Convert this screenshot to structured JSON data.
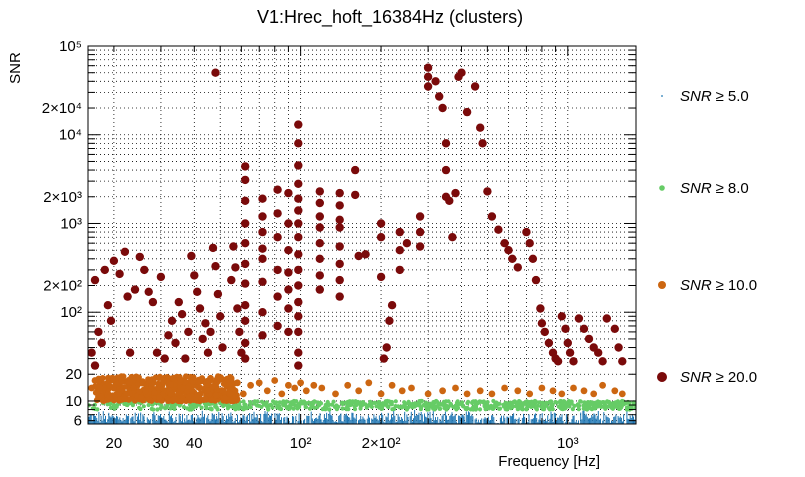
{
  "chart_data": {
    "type": "scatter",
    "title": "V1:Hrec_hoft_16384Hz (clusters)",
    "xlabel": "Frequency [Hz]",
    "ylabel": "SNR",
    "x_scale": "log",
    "y_scale": "log",
    "xlim": [
      16,
      1800
    ],
    "ylim": [
      5.5,
      100000
    ],
    "grid": true,
    "legend_position": "right",
    "x_ticks": [
      {
        "value": 20,
        "label": "20"
      },
      {
        "value": 30,
        "label": "30"
      },
      {
        "value": 40,
        "label": "40"
      },
      {
        "value": 100,
        "label": "10²"
      },
      {
        "value": 200,
        "label": "2×10²"
      },
      {
        "value": 1000,
        "label": "10³"
      }
    ],
    "y_ticks": [
      {
        "value": 6,
        "label": "6"
      },
      {
        "value": 10,
        "label": "10"
      },
      {
        "value": 20,
        "label": "20"
      },
      {
        "value": 100,
        "label": "10²"
      },
      {
        "value": 200,
        "label": "2×10²"
      },
      {
        "value": 1000,
        "label": "10³"
      },
      {
        "value": 2000,
        "label": "2×10³"
      },
      {
        "value": 10000,
        "label": "10⁴"
      },
      {
        "value": 20000,
        "label": "2×10⁴"
      },
      {
        "value": 100000,
        "label": "10⁵"
      }
    ],
    "series": [
      {
        "name": "SNR ≥ 5.0",
        "label_var": "SNR",
        "label_op": "≥",
        "label_num": "5.0",
        "color": "#1f77b4",
        "marker": "bar",
        "x_range": [
          16,
          1800
        ],
        "y_range": [
          5.5,
          8.0
        ]
      },
      {
        "name": "SNR ≥ 8.0",
        "label_var": "SNR",
        "label_op": "≥",
        "label_num": "8.0",
        "color": "#66cc66",
        "marker": "point",
        "x_range": [
          16,
          1800
        ],
        "y_range": [
          8.0,
          10.0
        ]
      },
      {
        "name": "SNR ≥ 10.0",
        "label_var": "SNR",
        "label_op": "≥",
        "label_num": "10.0",
        "color": "#cc6611",
        "points": [
          [
            16.5,
            14
          ],
          [
            17,
            17
          ],
          [
            17.5,
            12
          ],
          [
            18,
            15
          ],
          [
            18.5,
            13
          ],
          [
            19,
            16
          ],
          [
            19.5,
            11
          ],
          [
            20,
            14
          ],
          [
            21,
            17
          ],
          [
            22,
            12
          ],
          [
            23,
            15
          ],
          [
            24,
            13
          ],
          [
            25,
            16
          ],
          [
            26,
            11
          ],
          [
            27,
            14
          ],
          [
            28,
            17
          ],
          [
            29,
            12
          ],
          [
            30,
            15
          ],
          [
            31,
            13
          ],
          [
            32,
            18
          ],
          [
            33,
            12
          ],
          [
            34,
            16
          ],
          [
            35,
            14
          ],
          [
            36,
            17
          ],
          [
            37,
            13
          ],
          [
            38,
            15
          ],
          [
            39,
            18
          ],
          [
            40,
            12
          ],
          [
            41,
            16
          ],
          [
            42,
            14
          ],
          [
            43,
            17
          ],
          [
            44,
            13
          ],
          [
            45,
            15
          ],
          [
            46,
            18
          ],
          [
            47,
            12
          ],
          [
            48,
            16
          ],
          [
            50,
            13
          ],
          [
            52,
            17
          ],
          [
            55,
            14
          ],
          [
            58,
            16
          ],
          [
            61,
            12
          ],
          [
            65,
            15
          ],
          [
            70,
            16
          ],
          [
            75,
            13
          ],
          [
            80,
            17
          ],
          [
            85,
            12
          ],
          [
            90,
            15
          ],
          [
            95,
            14
          ],
          [
            100,
            16
          ],
          [
            105,
            13
          ],
          [
            112,
            15
          ],
          [
            120,
            14
          ],
          [
            135,
            12
          ],
          [
            150,
            15
          ],
          [
            165,
            13
          ],
          [
            180,
            16
          ],
          [
            200,
            12
          ],
          [
            220,
            15
          ],
          [
            240,
            13
          ],
          [
            260,
            14
          ],
          [
            300,
            12
          ],
          [
            340,
            13
          ],
          [
            380,
            14
          ],
          [
            420,
            12
          ],
          [
            470,
            13
          ],
          [
            520,
            12
          ],
          [
            580,
            14
          ],
          [
            650,
            13
          ],
          [
            720,
            12
          ],
          [
            800,
            14
          ],
          [
            880,
            13
          ],
          [
            950,
            12
          ],
          [
            1050,
            14
          ],
          [
            1150,
            13
          ],
          [
            1250,
            12
          ],
          [
            1350,
            15
          ],
          [
            1500,
            13
          ],
          [
            1600,
            12
          ]
        ]
      },
      {
        "name": "SNR ≥ 20.0",
        "label_var": "SNR",
        "label_op": "≥",
        "label_num": "20.0",
        "color": "#7a0a0a",
        "points": [
          [
            16.5,
            35
          ],
          [
            17,
            25
          ],
          [
            17,
            230
          ],
          [
            17.5,
            60
          ],
          [
            18,
            45
          ],
          [
            18.5,
            300
          ],
          [
            19,
            120
          ],
          [
            19.5,
            80
          ],
          [
            20,
            380
          ],
          [
            21,
            270
          ],
          [
            22,
            480
          ],
          [
            22.5,
            150
          ],
          [
            23,
            35
          ],
          [
            24,
            180
          ],
          [
            25,
            420
          ],
          [
            26,
            300
          ],
          [
            27,
            170
          ],
          [
            28,
            130
          ],
          [
            29,
            35
          ],
          [
            30,
            250
          ],
          [
            31,
            30
          ],
          [
            32,
            55
          ],
          [
            33,
            80
          ],
          [
            34,
            45
          ],
          [
            35,
            130
          ],
          [
            36,
            95
          ],
          [
            37,
            30
          ],
          [
            38,
            60
          ],
          [
            39,
            430
          ],
          [
            40,
            260
          ],
          [
            41,
            170
          ],
          [
            42,
            110
          ],
          [
            43,
            50
          ],
          [
            44,
            75
          ],
          [
            45,
            35
          ],
          [
            46,
            60
          ],
          [
            47,
            530
          ],
          [
            48,
            330
          ],
          [
            48,
            50000
          ],
          [
            49,
            160
          ],
          [
            50,
            90
          ],
          [
            51,
            40
          ],
          [
            55,
            230
          ],
          [
            56,
            550
          ],
          [
            57,
            320
          ],
          [
            58,
            110
          ],
          [
            59,
            60
          ],
          [
            60,
            35
          ],
          [
            62,
            4400
          ],
          [
            62,
            3100
          ],
          [
            62,
            1800
          ],
          [
            62,
            1000
          ],
          [
            62,
            600
          ],
          [
            62,
            350
          ],
          [
            62,
            210
          ],
          [
            62,
            120
          ],
          [
            62,
            80
          ],
          [
            62,
            45
          ],
          [
            62,
            30
          ],
          [
            72,
            1900
          ],
          [
            72,
            1200
          ],
          [
            72,
            800
          ],
          [
            72,
            520
          ],
          [
            72,
            400
          ],
          [
            72,
            220
          ],
          [
            72,
            100
          ],
          [
            72,
            55
          ],
          [
            82,
            2400
          ],
          [
            82,
            1300
          ],
          [
            82,
            700
          ],
          [
            82,
            300
          ],
          [
            82,
            150
          ],
          [
            82,
            70
          ],
          [
            90,
            2200
          ],
          [
            90,
            1000
          ],
          [
            90,
            500
          ],
          [
            90,
            280
          ],
          [
            90,
            180
          ],
          [
            90,
            110
          ],
          [
            90,
            60
          ],
          [
            98,
            13000
          ],
          [
            98,
            8000
          ],
          [
            98,
            4500
          ],
          [
            98,
            2800
          ],
          [
            98,
            1900
          ],
          [
            98,
            1400
          ],
          [
            98,
            1000
          ],
          [
            98,
            700
          ],
          [
            98,
            450
          ],
          [
            98,
            300
          ],
          [
            98,
            200
          ],
          [
            98,
            130
          ],
          [
            98,
            90
          ],
          [
            98,
            60
          ],
          [
            98,
            35
          ],
          [
            98,
            25
          ],
          [
            118,
            2300
          ],
          [
            118,
            1700
          ],
          [
            118,
            1200
          ],
          [
            118,
            900
          ],
          [
            118,
            600
          ],
          [
            118,
            400
          ],
          [
            118,
            260
          ],
          [
            118,
            180
          ],
          [
            140,
            2200
          ],
          [
            140,
            1600
          ],
          [
            140,
            1100
          ],
          [
            140,
            900
          ],
          [
            140,
            550
          ],
          [
            140,
            350
          ],
          [
            140,
            230
          ],
          [
            140,
            150
          ],
          [
            160,
            4000
          ],
          [
            160,
            2100
          ],
          [
            165,
            430
          ],
          [
            175,
            450
          ],
          [
            200,
            1000
          ],
          [
            200,
            700
          ],
          [
            200,
            250
          ],
          [
            205,
            30
          ],
          [
            210,
            40
          ],
          [
            215,
            80
          ],
          [
            220,
            120
          ],
          [
            235,
            800
          ],
          [
            235,
            500
          ],
          [
            235,
            300
          ],
          [
            250,
            600
          ],
          [
            280,
            1200
          ],
          [
            280,
            800
          ],
          [
            280,
            550
          ],
          [
            300,
            57000
          ],
          [
            300,
            45000
          ],
          [
            300,
            35000
          ],
          [
            320,
            40000
          ],
          [
            330,
            27000
          ],
          [
            340,
            20000
          ],
          [
            350,
            8000
          ],
          [
            350,
            4000
          ],
          [
            350,
            2000
          ],
          [
            360,
            1800
          ],
          [
            370,
            700
          ],
          [
            380,
            2200
          ],
          [
            390,
            45000
          ],
          [
            400,
            50000
          ],
          [
            420,
            18000
          ],
          [
            450,
            35000
          ],
          [
            470,
            12000
          ],
          [
            480,
            8000
          ],
          [
            500,
            2300
          ],
          [
            520,
            1200
          ],
          [
            550,
            850
          ],
          [
            580,
            600
          ],
          [
            600,
            500
          ],
          [
            620,
            400
          ],
          [
            650,
            320
          ],
          [
            700,
            800
          ],
          [
            720,
            600
          ],
          [
            740,
            400
          ],
          [
            760,
            230
          ],
          [
            790,
            110
          ],
          [
            800,
            75
          ],
          [
            820,
            60
          ],
          [
            850,
            45
          ],
          [
            880,
            35
          ],
          [
            900,
            30
          ],
          [
            920,
            28
          ],
          [
            950,
            90
          ],
          [
            980,
            65
          ],
          [
            1000,
            45
          ],
          [
            1020,
            35
          ],
          [
            1050,
            28
          ],
          [
            1100,
            85
          ],
          [
            1150,
            65
          ],
          [
            1200,
            50
          ],
          [
            1250,
            40
          ],
          [
            1300,
            35
          ],
          [
            1350,
            28
          ],
          [
            1400,
            85
          ],
          [
            1500,
            65
          ],
          [
            1550,
            40
          ],
          [
            1600,
            28
          ]
        ]
      }
    ]
  }
}
